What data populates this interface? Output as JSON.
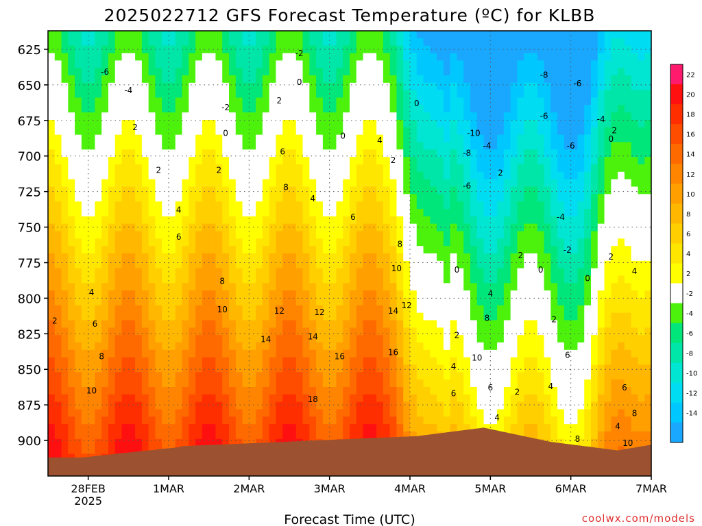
{
  "chart_data": {
    "type": "heatmap",
    "title": "2025022712 GFS Forecast Temperature (ºC) for KLBB",
    "xlabel": "Forecast Time (UTC)",
    "ylabel": "",
    "credit": "coolwx.com/models",
    "x_ticks": [
      {
        "label": "28FEB",
        "sublabel": "2025",
        "t": 12
      },
      {
        "label": "1MAR",
        "t": 36
      },
      {
        "label": "2MAR",
        "t": 60
      },
      {
        "label": "3MAR",
        "t": 84
      },
      {
        "label": "4MAR",
        "t": 108
      },
      {
        "label": "5MAR",
        "t": 132
      },
      {
        "label": "6MAR",
        "t": 156
      },
      {
        "label": "7MAR",
        "t": 180
      }
    ],
    "xlim": [
      0,
      180
    ],
    "y_ticks": [
      625,
      650,
      675,
      700,
      725,
      750,
      775,
      800,
      825,
      850,
      875,
      900
    ],
    "ylim": [
      925,
      612
    ],
    "grid": true,
    "colorbar": {
      "labels": [
        22,
        20,
        18,
        16,
        14,
        12,
        10,
        8,
        6,
        4,
        2,
        -2,
        -4,
        -6,
        -8,
        -10,
        -12,
        -14
      ],
      "colors": [
        "#ff1a6e",
        "#ff1010",
        "#ff2e00",
        "#ff4d00",
        "#ff6a00",
        "#ff8500",
        "#ff9f00",
        "#ffb700",
        "#ffcf00",
        "#ffe600",
        "#ffff00",
        "#ffffff",
        "#4cf20c",
        "#00e67a",
        "#00e6a8",
        "#00e6d2",
        "#00ddf2",
        "#00c8ff",
        "#1aa8ff"
      ]
    },
    "contour_labels": [
      {
        "text": "-6",
        "t": 17,
        "p": 641
      },
      {
        "text": "-4",
        "t": 24,
        "p": 654
      },
      {
        "text": "-2",
        "t": 75,
        "p": 628
      },
      {
        "text": "-2",
        "t": 53,
        "p": 666
      },
      {
        "text": "2",
        "t": 26,
        "p": 680
      },
      {
        "text": "0",
        "t": 53,
        "p": 684
      },
      {
        "text": "0",
        "t": 75,
        "p": 648
      },
      {
        "text": "2",
        "t": 69,
        "p": 661
      },
      {
        "text": "2",
        "t": 33,
        "p": 710
      },
      {
        "text": "2",
        "t": 51,
        "p": 710
      },
      {
        "text": "0",
        "t": 88,
        "p": 686
      },
      {
        "text": "0",
        "t": 110,
        "p": 663
      },
      {
        "text": "4",
        "t": 39,
        "p": 738
      },
      {
        "text": "6",
        "t": 39,
        "p": 757
      },
      {
        "text": "4",
        "t": 13,
        "p": 796
      },
      {
        "text": "2",
        "t": 2,
        "p": 816
      },
      {
        "text": "6",
        "t": 14,
        "p": 818
      },
      {
        "text": "8",
        "t": 16,
        "p": 841
      },
      {
        "text": "10",
        "t": 13,
        "p": 865
      },
      {
        "text": "6",
        "t": 70,
        "p": 697
      },
      {
        "text": "8",
        "t": 71,
        "p": 722
      },
      {
        "text": "4",
        "t": 79,
        "p": 730
      },
      {
        "text": "6",
        "t": 91,
        "p": 743
      },
      {
        "text": "4",
        "t": 99,
        "p": 689
      },
      {
        "text": "2",
        "t": 103,
        "p": 703
      },
      {
        "text": "8",
        "t": 52,
        "p": 788
      },
      {
        "text": "10",
        "t": 52,
        "p": 808
      },
      {
        "text": "12",
        "t": 69,
        "p": 809
      },
      {
        "text": "12",
        "t": 81,
        "p": 810
      },
      {
        "text": "14",
        "t": 65,
        "p": 829
      },
      {
        "text": "14",
        "t": 79,
        "p": 827
      },
      {
        "text": "16",
        "t": 87,
        "p": 841
      },
      {
        "text": "14",
        "t": 103,
        "p": 809
      },
      {
        "text": "12",
        "t": 107,
        "p": 805
      },
      {
        "text": "16",
        "t": 103,
        "p": 838
      },
      {
        "text": "18",
        "t": 79,
        "p": 871
      },
      {
        "text": "8",
        "t": 105,
        "p": 762
      },
      {
        "text": "10",
        "t": 104,
        "p": 779
      },
      {
        "text": "-10",
        "t": 127,
        "p": 684
      },
      {
        "text": "-8",
        "t": 125,
        "p": 698
      },
      {
        "text": "-4",
        "t": 131,
        "p": 693
      },
      {
        "text": "-6",
        "t": 125,
        "p": 721
      },
      {
        "text": "-8",
        "t": 148,
        "p": 643
      },
      {
        "text": "-6",
        "t": 158,
        "p": 649
      },
      {
        "text": "-6",
        "t": 148,
        "p": 672
      },
      {
        "text": "-6",
        "t": 156,
        "p": 693
      },
      {
        "text": "-4",
        "t": 165,
        "p": 674
      },
      {
        "text": "2",
        "t": 135,
        "p": 712
      },
      {
        "text": "0",
        "t": 122,
        "p": 780
      },
      {
        "text": "2",
        "t": 141,
        "p": 770
      },
      {
        "text": "0",
        "t": 147,
        "p": 780
      },
      {
        "text": "-4",
        "t": 153,
        "p": 743
      },
      {
        "text": "-2",
        "t": 155,
        "p": 766
      },
      {
        "text": "0",
        "t": 161,
        "p": 786
      },
      {
        "text": "2",
        "t": 169,
        "p": 682
      },
      {
        "text": "0",
        "t": 168,
        "p": 688
      },
      {
        "text": "2",
        "t": 168,
        "p": 771
      },
      {
        "text": "4",
        "t": 175,
        "p": 781
      },
      {
        "text": "4",
        "t": 132,
        "p": 797
      },
      {
        "text": "8",
        "t": 131,
        "p": 814
      },
      {
        "text": "10",
        "t": 128,
        "p": 842
      },
      {
        "text": "2",
        "t": 122,
        "p": 826
      },
      {
        "text": "4",
        "t": 121,
        "p": 848
      },
      {
        "text": "6",
        "t": 121,
        "p": 867
      },
      {
        "text": "6",
        "t": 132,
        "p": 863
      },
      {
        "text": "4",
        "t": 134,
        "p": 884
      },
      {
        "text": "2",
        "t": 140,
        "p": 866
      },
      {
        "text": "2",
        "t": 151,
        "p": 815
      },
      {
        "text": "6",
        "t": 155,
        "p": 840
      },
      {
        "text": "4",
        "t": 150,
        "p": 862
      },
      {
        "text": "4",
        "t": 170,
        "p": 890
      },
      {
        "text": "6",
        "t": 172,
        "p": 863
      },
      {
        "text": "8",
        "t": 175,
        "p": 881
      },
      {
        "text": "10",
        "t": 173,
        "p": 902
      },
      {
        "text": "8",
        "t": 158,
        "p": 899
      }
    ]
  }
}
